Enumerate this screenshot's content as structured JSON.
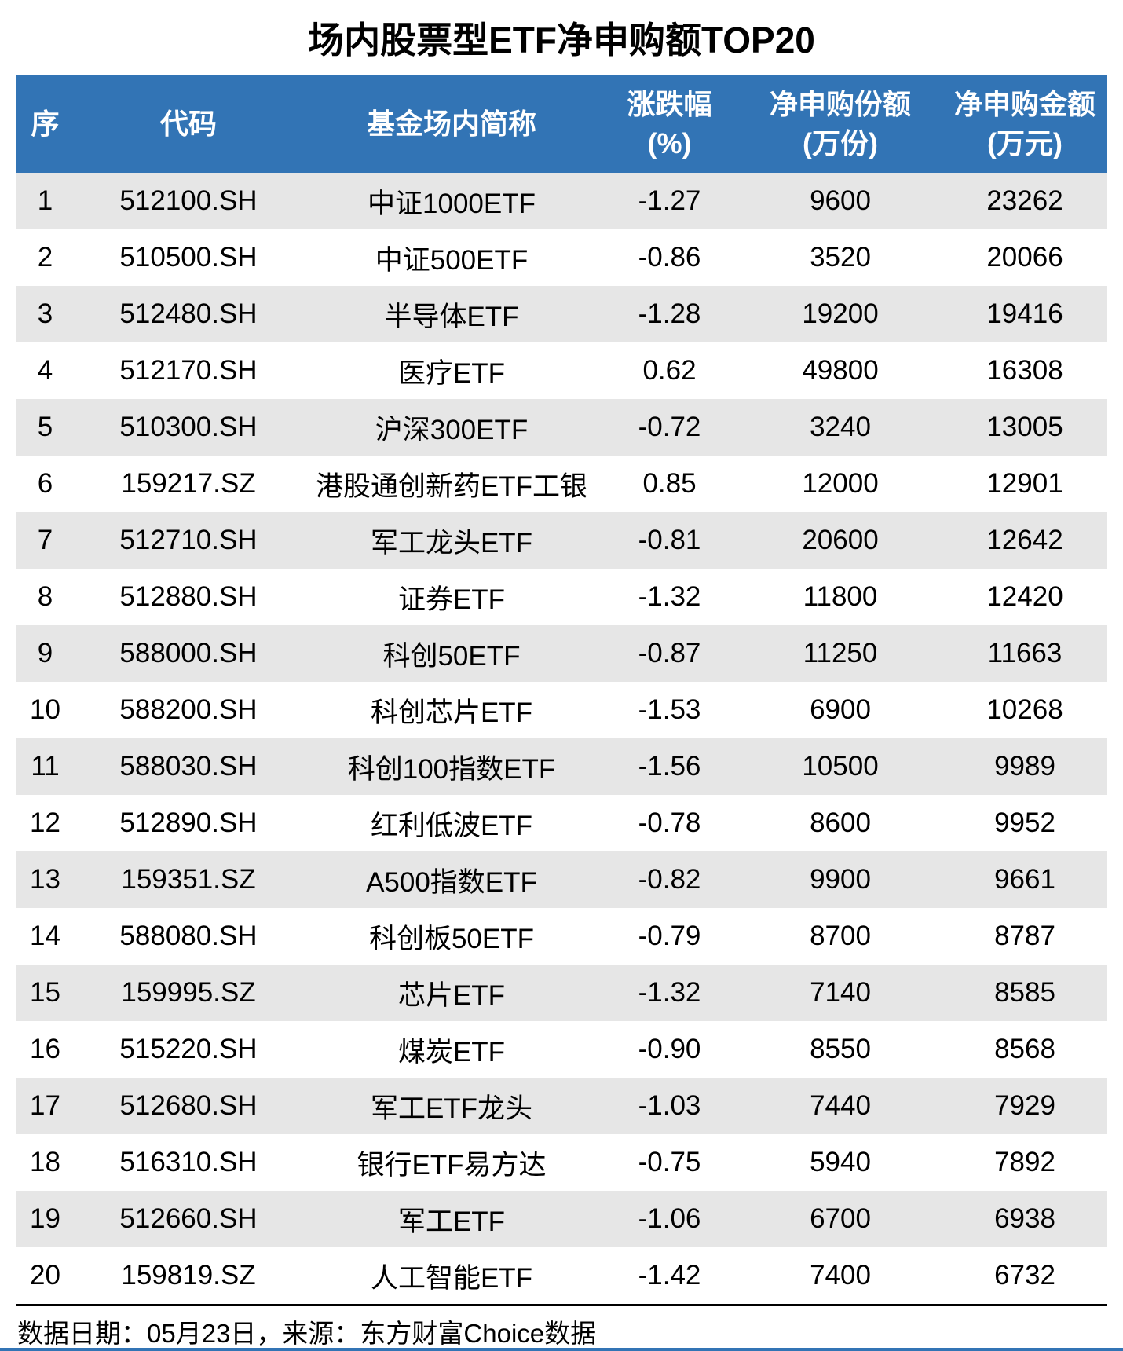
{
  "title": "场内股票型ETF净申购额TOP20",
  "colors": {
    "header_bg": "#3274B5",
    "stripe_bg": "#E6E6E6",
    "divider": "#000000",
    "bottom_bar": "#3274B5"
  },
  "table": {
    "headers": [
      {
        "label": "序",
        "sub": ""
      },
      {
        "label": "代码",
        "sub": ""
      },
      {
        "label": "基金场内简称",
        "sub": ""
      },
      {
        "label": "涨跌幅",
        "sub": "(%)"
      },
      {
        "label": "净申购份额",
        "sub": "(万份)"
      },
      {
        "label": "净申购金额",
        "sub": "(万元)"
      }
    ],
    "rows": [
      [
        "1",
        "512100.SH",
        "中证1000ETF",
        "-1.27",
        "9600",
        "23262"
      ],
      [
        "2",
        "510500.SH",
        "中证500ETF",
        "-0.86",
        "3520",
        "20066"
      ],
      [
        "3",
        "512480.SH",
        "半导体ETF",
        "-1.28",
        "19200",
        "19416"
      ],
      [
        "4",
        "512170.SH",
        "医疗ETF",
        "0.62",
        "49800",
        "16308"
      ],
      [
        "5",
        "510300.SH",
        "沪深300ETF",
        "-0.72",
        "3240",
        "13005"
      ],
      [
        "6",
        "159217.SZ",
        "港股通创新药ETF工银",
        "0.85",
        "12000",
        "12901"
      ],
      [
        "7",
        "512710.SH",
        "军工龙头ETF",
        "-0.81",
        "20600",
        "12642"
      ],
      [
        "8",
        "512880.SH",
        "证券ETF",
        "-1.32",
        "11800",
        "12420"
      ],
      [
        "9",
        "588000.SH",
        "科创50ETF",
        "-0.87",
        "11250",
        "11663"
      ],
      [
        "10",
        "588200.SH",
        "科创芯片ETF",
        "-1.53",
        "6900",
        "10268"
      ],
      [
        "11",
        "588030.SH",
        "科创100指数ETF",
        "-1.56",
        "10500",
        "9989"
      ],
      [
        "12",
        "512890.SH",
        "红利低波ETF",
        "-0.78",
        "8600",
        "9952"
      ],
      [
        "13",
        "159351.SZ",
        "A500指数ETF",
        "-0.82",
        "9900",
        "9661"
      ],
      [
        "14",
        "588080.SH",
        "科创板50ETF",
        "-0.79",
        "8700",
        "8787"
      ],
      [
        "15",
        "159995.SZ",
        "芯片ETF",
        "-1.32",
        "7140",
        "8585"
      ],
      [
        "16",
        "515220.SH",
        "煤炭ETF",
        "-0.90",
        "8550",
        "8568"
      ],
      [
        "17",
        "512680.SH",
        "军工ETF龙头",
        "-1.03",
        "7440",
        "7929"
      ],
      [
        "18",
        "516310.SH",
        "银行ETF易方达",
        "-0.75",
        "5940",
        "7892"
      ],
      [
        "19",
        "512660.SH",
        "军工ETF",
        "-1.06",
        "6700",
        "6938"
      ],
      [
        "20",
        "159819.SZ",
        "人工智能ETF",
        "-1.42",
        "7400",
        "6732"
      ]
    ]
  },
  "footer": {
    "note": "数据日期：05月23日，来源：东方财富Choice数据"
  },
  "chart_data": {
    "type": "table",
    "title": "场内股票型ETF净申购额TOP20",
    "columns": [
      "序",
      "代码",
      "基金场内简称",
      "涨跌幅(%)",
      "净申购份额(万份)",
      "净申购金额(万元)"
    ],
    "rows": [
      [
        1,
        "512100.SH",
        "中证1000ETF",
        -1.27,
        9600,
        23262
      ],
      [
        2,
        "510500.SH",
        "中证500ETF",
        -0.86,
        3520,
        20066
      ],
      [
        3,
        "512480.SH",
        "半导体ETF",
        -1.28,
        19200,
        19416
      ],
      [
        4,
        "512170.SH",
        "医疗ETF",
        0.62,
        49800,
        16308
      ],
      [
        5,
        "510300.SH",
        "沪深300ETF",
        -0.72,
        3240,
        13005
      ],
      [
        6,
        "159217.SZ",
        "港股通创新药ETF工银",
        0.85,
        12000,
        12901
      ],
      [
        7,
        "512710.SH",
        "军工龙头ETF",
        -0.81,
        20600,
        12642
      ],
      [
        8,
        "512880.SH",
        "证券ETF",
        -1.32,
        11800,
        12420
      ],
      [
        9,
        "588000.SH",
        "科创50ETF",
        -0.87,
        11250,
        11663
      ],
      [
        10,
        "588200.SH",
        "科创芯片ETF",
        -1.53,
        6900,
        10268
      ],
      [
        11,
        "588030.SH",
        "科创100指数ETF",
        -1.56,
        10500,
        9989
      ],
      [
        12,
        "512890.SH",
        "红利低波ETF",
        -0.78,
        8600,
        9952
      ],
      [
        13,
        "159351.SZ",
        "A500指数ETF",
        -0.82,
        9900,
        9661
      ],
      [
        14,
        "588080.SH",
        "科创板50ETF",
        -0.79,
        8700,
        8787
      ],
      [
        15,
        "159995.SZ",
        "芯片ETF",
        -1.32,
        7140,
        8585
      ],
      [
        16,
        "515220.SH",
        "煤炭ETF",
        -0.9,
        8550,
        8568
      ],
      [
        17,
        "512680.SH",
        "军工ETF龙头",
        -1.03,
        7440,
        7929
      ],
      [
        18,
        "516310.SH",
        "银行ETF易方达",
        -0.75,
        5940,
        7892
      ],
      [
        19,
        "512660.SH",
        "军工ETF",
        -1.06,
        6700,
        6938
      ],
      [
        20,
        "159819.SZ",
        "人工智能ETF",
        -1.42,
        7400,
        6732
      ]
    ]
  }
}
